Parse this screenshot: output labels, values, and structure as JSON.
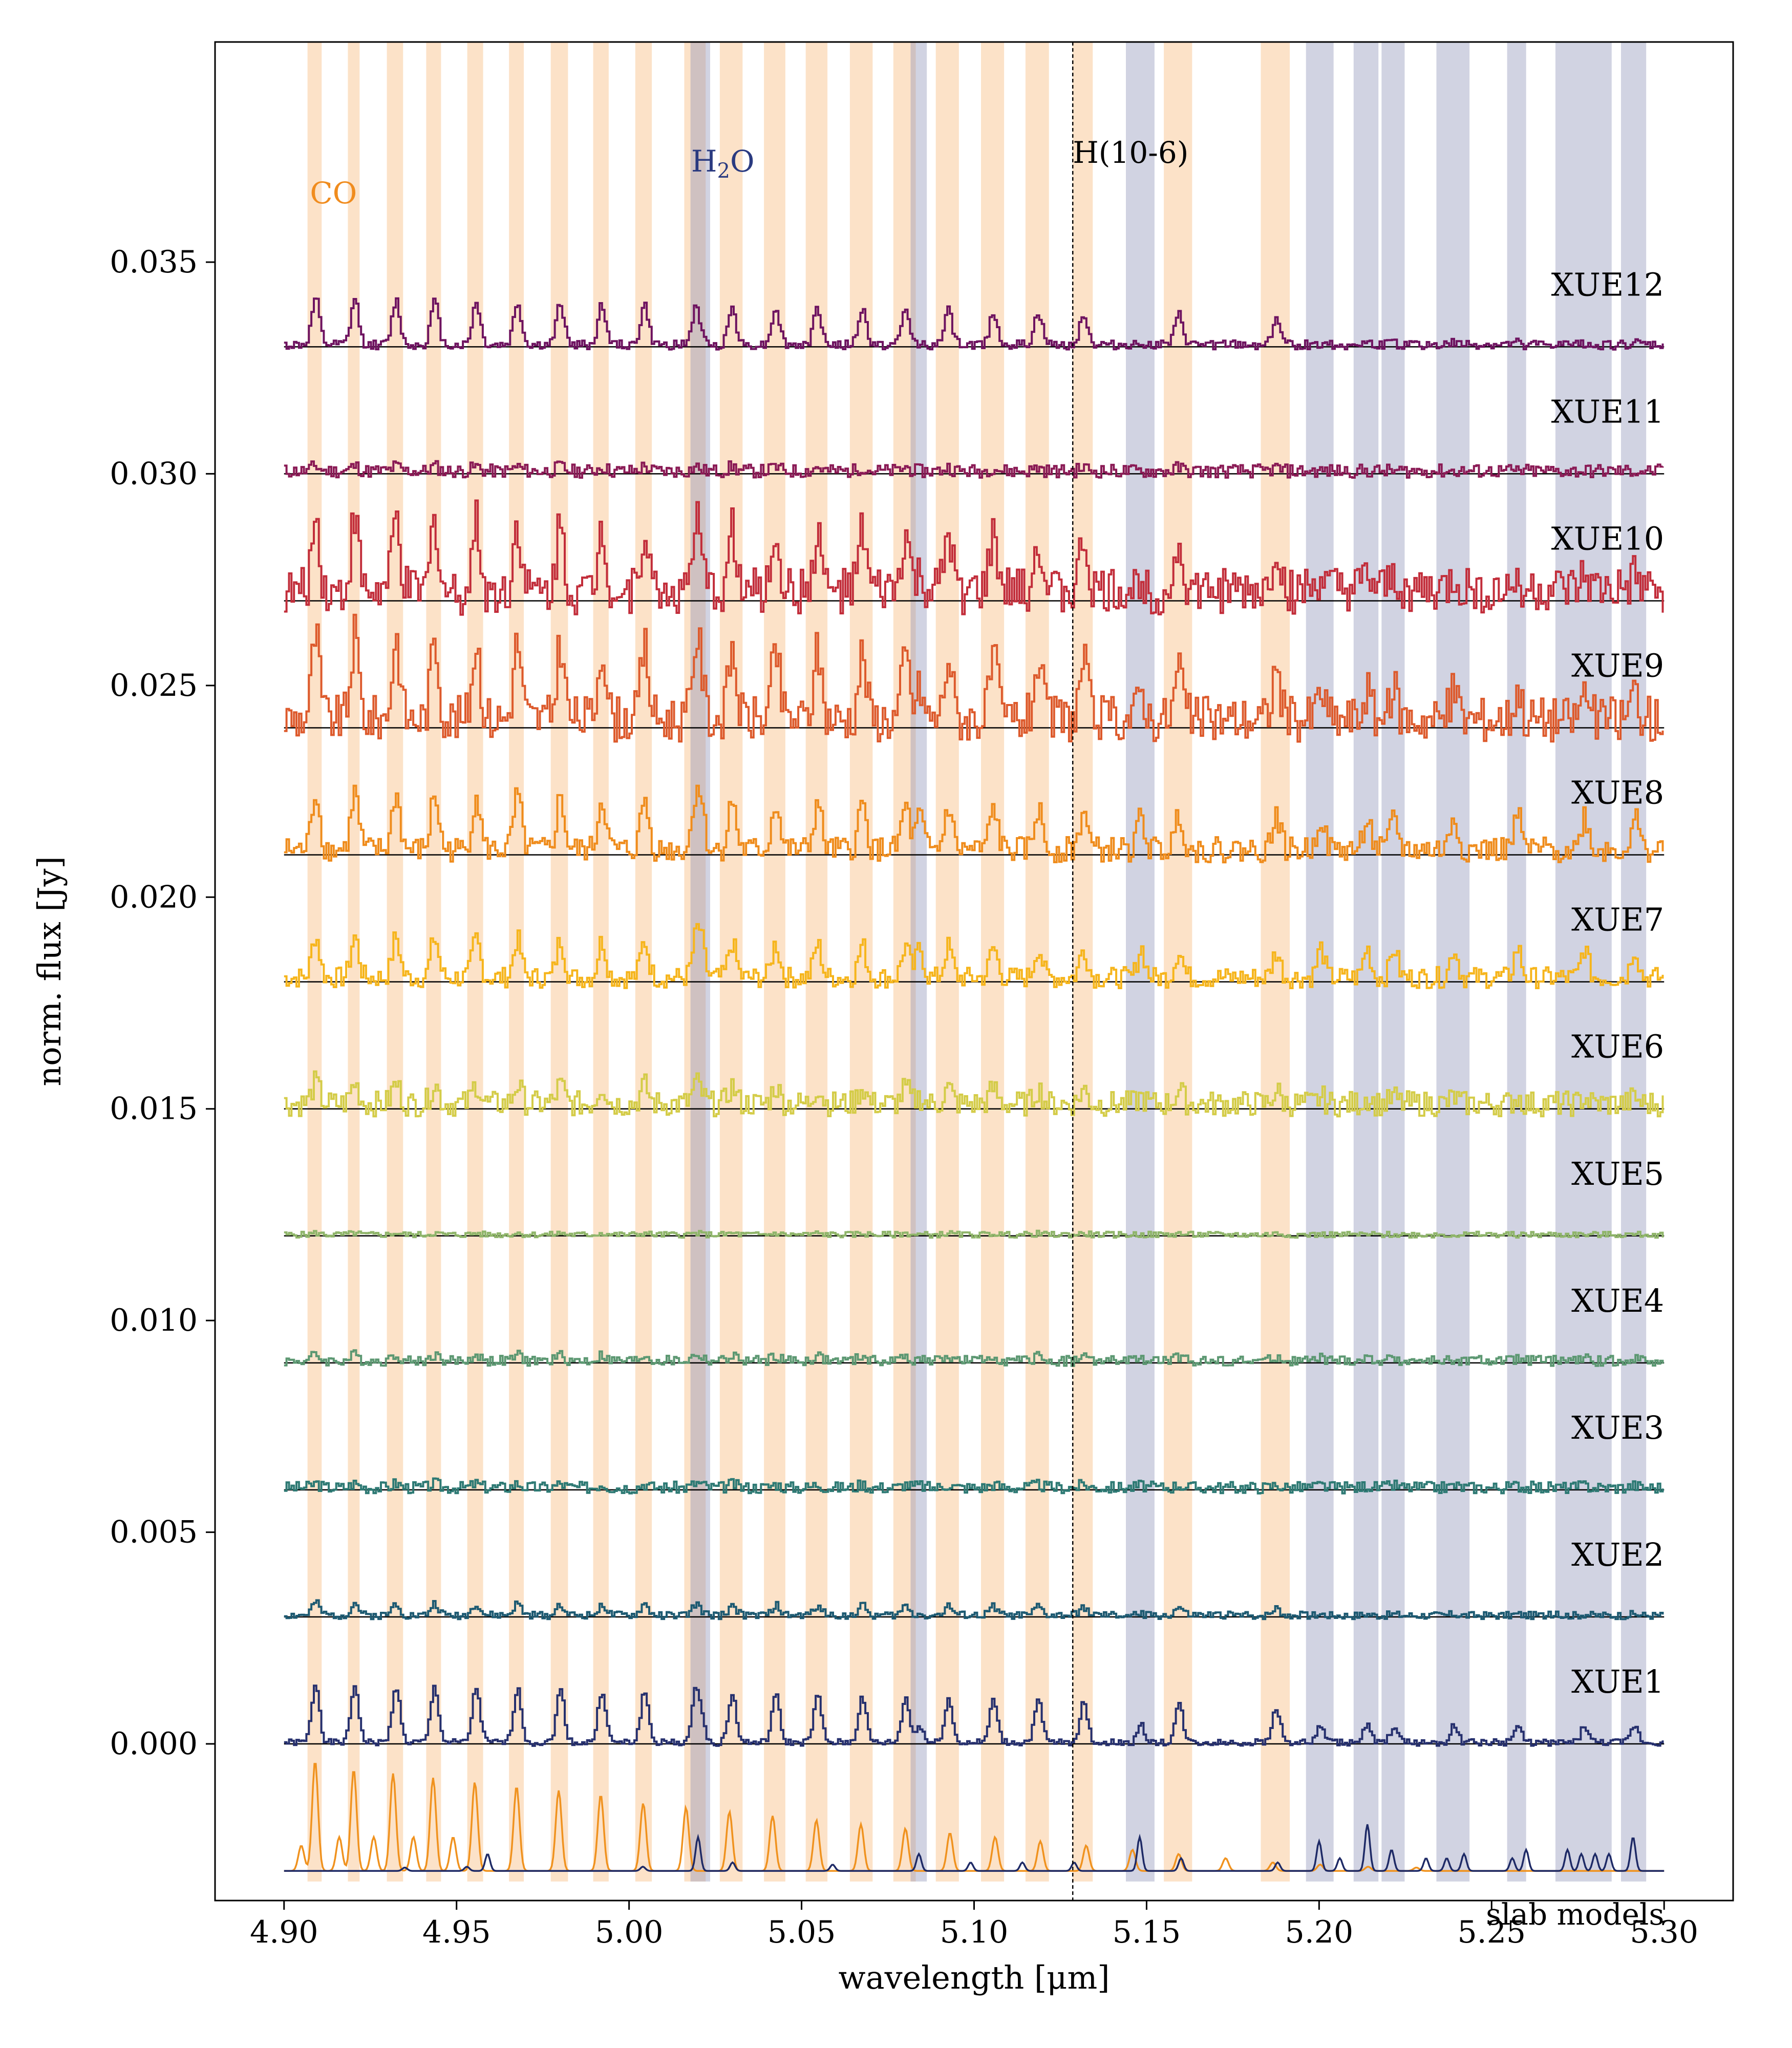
{
  "chart_data": {
    "type": "line",
    "xlabel": "wavelength [μm]",
    "ylabel": "norm. flux [Jy]",
    "xlim": [
      4.88,
      5.32
    ],
    "ylim": [
      -0.0037,
      0.0402
    ],
    "x_ticks": [
      4.9,
      4.95,
      5.0,
      5.05,
      5.1,
      5.15,
      5.2,
      5.25,
      5.3
    ],
    "x_tick_labels": [
      "4.90",
      "4.95",
      "5.00",
      "5.05",
      "5.10",
      "5.15",
      "5.20",
      "5.25",
      "5.30"
    ],
    "y_ticks": [
      0.0,
      0.005,
      0.01,
      0.015,
      0.02,
      0.025,
      0.03,
      0.035
    ],
    "y_tick_labels": [
      "0.000",
      "0.005",
      "0.010",
      "0.015",
      "0.020",
      "0.025",
      "0.030",
      "0.035"
    ],
    "grid": false,
    "colors": {
      "co_band": "#f5a04a",
      "h2o_band": "#8c90b6",
      "co_label": "#f08c1e",
      "h2o_label": "#2a3a80"
    },
    "annotations": {
      "co": "CO",
      "h2o_main": "H",
      "h2o_sub": "2",
      "h2o_tail": "O",
      "hline": "H(10-6)",
      "hline_x": 5.1286
    },
    "co_bands": [
      [
        4.9068,
        4.9109
      ],
      [
        4.9185,
        4.9219
      ],
      [
        4.9298,
        4.9345
      ],
      [
        4.9412,
        4.9455
      ],
      [
        4.9531,
        4.9577
      ],
      [
        4.9652,
        4.9695
      ],
      [
        4.9773,
        4.9823
      ],
      [
        4.9896,
        4.9941
      ],
      [
        5.0018,
        5.0066
      ],
      [
        5.016,
        5.0222
      ],
      [
        5.0263,
        5.0329
      ],
      [
        5.0391,
        5.0453
      ],
      [
        5.0512,
        5.0575
      ],
      [
        5.064,
        5.0706
      ],
      [
        5.0766,
        5.0831
      ],
      [
        5.0889,
        5.0956
      ],
      [
        5.102,
        5.1087
      ],
      [
        5.1149,
        5.1217
      ],
      [
        5.1285,
        5.1344
      ],
      [
        5.155,
        5.1632
      ],
      [
        5.1831,
        5.1915
      ]
    ],
    "h2o_bands": [
      [
        5.0178,
        5.0235
      ],
      [
        5.0816,
        5.0863
      ],
      [
        5.144,
        5.1523
      ],
      [
        5.1962,
        5.2042
      ],
      [
        5.21,
        5.2172
      ],
      [
        5.2181,
        5.2248
      ],
      [
        5.234,
        5.2436
      ],
      [
        5.2545,
        5.26
      ],
      [
        5.2685,
        5.2848
      ],
      [
        5.2875,
        5.2948
      ]
    ],
    "series": [
      {
        "name": "XUE12",
        "baseline": 0.033,
        "color": "#6e1360",
        "peak_amp": 0.0011,
        "noise": 0.00011,
        "h2o_amp": 4e-05,
        "seed": 12
      },
      {
        "name": "XUE11",
        "baseline": 0.03,
        "color": "#8a1a55",
        "peak_amp": 0.00012,
        "noise": 0.00016,
        "h2o_amp": 0.0,
        "seed": 11
      },
      {
        "name": "XUE10",
        "baseline": 0.027,
        "color": "#c22d3a",
        "peak_amp": 0.0018,
        "noise": 0.00055,
        "h2o_amp": 0.0003,
        "seed": 10
      },
      {
        "name": "XUE9",
        "baseline": 0.024,
        "color": "#dd5a2c",
        "peak_amp": 0.002,
        "noise": 0.00055,
        "h2o_amp": 0.0007,
        "seed": 9
      },
      {
        "name": "XUE8",
        "baseline": 0.021,
        "color": "#ef8c1c",
        "peak_amp": 0.0014,
        "noise": 0.0003,
        "h2o_amp": 0.0008,
        "seed": 8
      },
      {
        "name": "XUE7",
        "baseline": 0.018,
        "color": "#f6b51c",
        "peak_amp": 0.001,
        "noise": 0.00025,
        "h2o_amp": 0.0007,
        "seed": 7
      },
      {
        "name": "XUE6",
        "baseline": 0.015,
        "color": "#d4cc48",
        "peak_amp": 0.0005,
        "noise": 0.0003,
        "h2o_amp": 0.00015,
        "seed": 6
      },
      {
        "name": "XUE5",
        "baseline": 0.012,
        "color": "#8fb56a",
        "peak_amp": 4e-05,
        "noise": 7e-05,
        "h2o_amp": 0.0,
        "seed": 5
      },
      {
        "name": "XUE4",
        "baseline": 0.009,
        "color": "#5c9872",
        "peak_amp": 0.00015,
        "noise": 0.00012,
        "h2o_amp": 5e-05,
        "seed": 4
      },
      {
        "name": "XUE3",
        "baseline": 0.006,
        "color": "#2e7a74",
        "peak_amp": 0.0001,
        "noise": 0.00014,
        "h2o_amp": 5e-05,
        "seed": 3
      },
      {
        "name": "XUE2",
        "baseline": 0.003,
        "color": "#1d5a72",
        "peak_amp": 0.0003,
        "noise": 9e-05,
        "h2o_amp": 3e-05,
        "seed": 2
      },
      {
        "name": "XUE1",
        "baseline": 0.0,
        "color": "#26306e",
        "peak_amp": 0.0014,
        "noise": 8e-05,
        "h2o_amp": 0.0004,
        "seed": 1
      }
    ],
    "slab_models": {
      "label": "slab models",
      "baseline": -0.003,
      "co_color": "#f0921e",
      "h2o_color": "#1e2a66",
      "co_peaks": [
        [
          4.905,
          0.0006
        ],
        [
          4.909,
          0.0026
        ],
        [
          4.916,
          0.0008
        ],
        [
          4.9202,
          0.0024
        ],
        [
          4.926,
          0.0008
        ],
        [
          4.9316,
          0.0023
        ],
        [
          4.9375,
          0.0008
        ],
        [
          4.9432,
          0.0022
        ],
        [
          4.949,
          0.0008
        ],
        [
          4.9553,
          0.0021
        ],
        [
          4.9674,
          0.002
        ],
        [
          4.9796,
          0.0019
        ],
        [
          4.9918,
          0.0018
        ],
        [
          5.0041,
          0.0016
        ],
        [
          5.0165,
          0.0015
        ],
        [
          5.0291,
          0.0014
        ],
        [
          5.0416,
          0.0013
        ],
        [
          5.0543,
          0.0012
        ],
        [
          5.0672,
          0.0011
        ],
        [
          5.0801,
          0.001
        ],
        [
          5.093,
          0.0009
        ],
        [
          5.1061,
          0.0008
        ],
        [
          5.1192,
          0.0007
        ],
        [
          5.1325,
          0.0006
        ],
        [
          5.1459,
          0.0005
        ],
        [
          5.1593,
          0.0004
        ],
        [
          5.1729,
          0.0003
        ],
        [
          5.1866,
          0.0002
        ],
        [
          5.2003,
          0.00015
        ],
        [
          5.2142,
          0.0001
        ],
        [
          5.2282,
          8e-05
        ]
      ],
      "h2o_peaks": [
        [
          4.935,
          8e-05
        ],
        [
          4.953,
          0.0001
        ],
        [
          4.959,
          0.0004
        ],
        [
          5.004,
          0.0001
        ],
        [
          5.02,
          0.0008
        ],
        [
          5.03,
          0.0002
        ],
        [
          5.059,
          0.00015
        ],
        [
          5.084,
          0.0004
        ],
        [
          5.099,
          0.0002
        ],
        [
          5.114,
          0.0002
        ],
        [
          5.129,
          0.0002
        ],
        [
          5.148,
          0.0008
        ],
        [
          5.16,
          0.0003
        ],
        [
          5.188,
          0.0002
        ],
        [
          5.2,
          0.0007
        ],
        [
          5.206,
          0.0003
        ],
        [
          5.214,
          0.0011
        ],
        [
          5.221,
          0.0005
        ],
        [
          5.231,
          0.0003
        ],
        [
          5.237,
          0.0003
        ],
        [
          5.242,
          0.0004
        ],
        [
          5.256,
          0.0003
        ],
        [
          5.26,
          0.0005
        ],
        [
          5.272,
          0.0005
        ],
        [
          5.276,
          0.0004
        ],
        [
          5.28,
          0.0004
        ],
        [
          5.284,
          0.0004
        ],
        [
          5.291,
          0.0008
        ]
      ]
    }
  }
}
